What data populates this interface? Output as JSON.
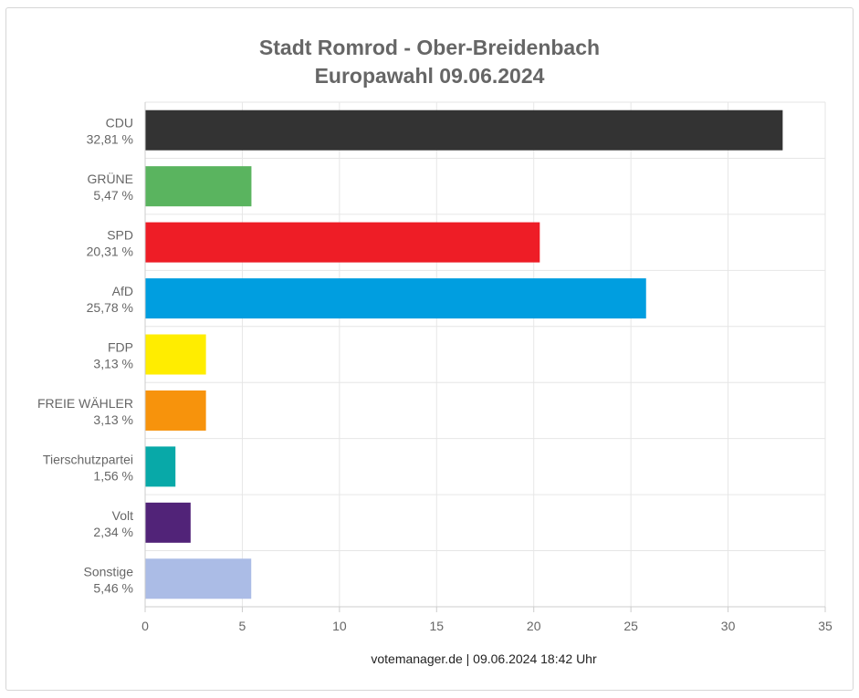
{
  "title_line1": "Stadt Romrod - Ober-Breidenbach",
  "title_line2": "Europawahl 09.06.2024",
  "footer": "votemanager.de | 09.06.2024 18:42 Uhr",
  "chart_data": {
    "type": "bar",
    "orientation": "horizontal",
    "title": "Stadt Romrod - Ober-Breidenbach\nEuropawahl 09.06.2024",
    "xlim": [
      0,
      35
    ],
    "xticks": [
      0,
      5,
      10,
      15,
      20,
      25,
      30,
      35
    ],
    "grid": true,
    "categories": [
      "CDU",
      "GRÜNE",
      "SPD",
      "AfD",
      "FDP",
      "FREIE WÄHLER",
      "Tierschutzpartei",
      "Volt",
      "Sonstige"
    ],
    "values": [
      32.81,
      5.47,
      20.31,
      25.78,
      3.13,
      3.13,
      1.56,
      2.34,
      5.46
    ],
    "value_labels": [
      "32,81 %",
      "5,47 %",
      "20,31 %",
      "25,78 %",
      "3,13 %",
      "3,13 %",
      "1,56 %",
      "2,34 %",
      "5,46 %"
    ],
    "colors": [
      "#333333",
      "#5ab45f",
      "#ee1d26",
      "#009ee0",
      "#ffed00",
      "#f7930c",
      "#08a9a8",
      "#512378",
      "#abbce6"
    ]
  }
}
